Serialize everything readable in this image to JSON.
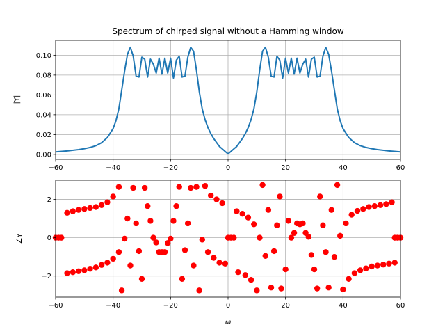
{
  "chart_data": [
    {
      "type": "line",
      "title": "Spectrum of chirped signal without a Hamming window",
      "xlabel": "",
      "ylabel": "|Y|",
      "xlim": [
        -60,
        60
      ],
      "ylim": [
        -0.005,
        0.115
      ],
      "xticks": [
        -60,
        -40,
        -20,
        0,
        20,
        40,
        60
      ],
      "xtick_labels": [
        "−60",
        "−40",
        "−20",
        "0",
        "20",
        "40",
        "60"
      ],
      "yticks": [
        0.0,
        0.02,
        0.04,
        0.06,
        0.08,
        0.1
      ],
      "ytick_labels": [
        "0.00",
        "0.02",
        "0.04",
        "0.06",
        "0.08",
        "0.10"
      ],
      "grid": true,
      "line_color": "#1f77b4",
      "x": [
        -60,
        -56,
        -52,
        -50,
        -48,
        -46,
        -44,
        -42,
        -40,
        -39,
        -38,
        -37,
        -36,
        -35,
        -34,
        -33,
        -32,
        -31,
        -30,
        -29,
        -28,
        -27,
        -26,
        -25,
        -24,
        -23,
        -22,
        -21,
        -20,
        -19,
        -18,
        -17,
        -16,
        -15,
        -14,
        -13,
        -12,
        -11,
        -10,
        -9,
        -8,
        -7,
        -6,
        -5,
        -4,
        -3,
        -2,
        -1,
        0,
        1,
        2,
        3,
        4,
        5,
        6,
        7,
        8,
        9,
        10,
        11,
        12,
        13,
        14,
        15,
        16,
        17,
        18,
        19,
        20,
        21,
        22,
        23,
        24,
        25,
        26,
        27,
        28,
        29,
        30,
        31,
        32,
        33,
        34,
        35,
        36,
        37,
        38,
        39,
        40,
        42,
        44,
        46,
        48,
        50,
        52,
        56,
        60
      ],
      "y": [
        0.0025,
        0.0035,
        0.0048,
        0.0058,
        0.007,
        0.0088,
        0.0118,
        0.017,
        0.026,
        0.034,
        0.046,
        0.065,
        0.084,
        0.101,
        0.108,
        0.099,
        0.079,
        0.078,
        0.098,
        0.096,
        0.078,
        0.096,
        0.091,
        0.082,
        0.097,
        0.081,
        0.097,
        0.082,
        0.097,
        0.077,
        0.095,
        0.099,
        0.078,
        0.079,
        0.098,
        0.108,
        0.104,
        0.085,
        0.063,
        0.046,
        0.035,
        0.027,
        0.021,
        0.016,
        0.012,
        0.008,
        0.0055,
        0.003,
        0.0005,
        0.003,
        0.0055,
        0.008,
        0.012,
        0.016,
        0.021,
        0.027,
        0.035,
        0.046,
        0.063,
        0.085,
        0.104,
        0.108,
        0.098,
        0.079,
        0.078,
        0.099,
        0.095,
        0.077,
        0.097,
        0.082,
        0.097,
        0.081,
        0.097,
        0.082,
        0.091,
        0.096,
        0.078,
        0.096,
        0.098,
        0.078,
        0.079,
        0.099,
        0.108,
        0.101,
        0.084,
        0.065,
        0.046,
        0.034,
        0.026,
        0.017,
        0.0118,
        0.0088,
        0.007,
        0.0058,
        0.0048,
        0.0035,
        0.0025
      ]
    },
    {
      "type": "scatter",
      "title": "",
      "xlabel": "ω",
      "ylabel": "∠Y",
      "xlim": [
        -60,
        60
      ],
      "ylim": [
        -3.1,
        3.0
      ],
      "xticks": [
        -60,
        -40,
        -20,
        0,
        20,
        40,
        60
      ],
      "xtick_labels": [
        "−60",
        "−40",
        "−20",
        "0",
        "20",
        "40",
        "60"
      ],
      "yticks": [
        -2,
        0,
        2
      ],
      "ytick_labels": [
        "−2",
        "0",
        "2"
      ],
      "grid": true,
      "marker_color": "#ff0000",
      "points": [
        [
          -60,
          0.0
        ],
        [
          -59,
          0.0
        ],
        [
          -58,
          0.0
        ],
        [
          -56,
          -1.85
        ],
        [
          -54,
          -1.8
        ],
        [
          -52,
          -1.75
        ],
        [
          -50,
          -1.7
        ],
        [
          -48,
          -1.62
        ],
        [
          -46,
          -1.55
        ],
        [
          -44,
          -1.42
        ],
        [
          -42,
          -1.3
        ],
        [
          -40,
          -1.1
        ],
        [
          -38,
          -0.75
        ],
        [
          -36,
          -0.05
        ],
        [
          -56,
          1.3
        ],
        [
          -54,
          1.38
        ],
        [
          -52,
          1.45
        ],
        [
          -50,
          1.5
        ],
        [
          -48,
          1.55
        ],
        [
          -46,
          1.6
        ],
        [
          -44,
          1.7
        ],
        [
          -42,
          1.85
        ],
        [
          -40,
          2.15
        ],
        [
          -38,
          2.65
        ],
        [
          -37,
          -2.75
        ],
        [
          -35,
          1.0
        ],
        [
          -34,
          -1.45
        ],
        [
          -33,
          2.6
        ],
        [
          -32,
          0.75
        ],
        [
          -31,
          -0.7
        ],
        [
          -30,
          -2.15
        ],
        [
          -29,
          2.6
        ],
        [
          -28,
          1.65
        ],
        [
          -27,
          0.88
        ],
        [
          -26,
          0.0
        ],
        [
          -25,
          -0.25
        ],
        [
          -24,
          -0.75
        ],
        [
          -23,
          -0.75
        ],
        [
          -22,
          -0.75
        ],
        [
          -21,
          -0.28
        ],
        [
          -20,
          -0.05
        ],
        [
          -19,
          0.88
        ],
        [
          -18,
          1.65
        ],
        [
          -17,
          2.65
        ],
        [
          -16,
          -2.15
        ],
        [
          -15,
          -0.65
        ],
        [
          -14,
          0.75
        ],
        [
          -13,
          2.6
        ],
        [
          -12,
          -1.45
        ],
        [
          -11,
          2.65
        ],
        [
          -10,
          -2.75
        ],
        [
          -9,
          -0.1
        ],
        [
          -8,
          2.7
        ],
        [
          -7,
          -0.75
        ],
        [
          -6,
          2.2
        ],
        [
          -5,
          -1.05
        ],
        [
          -4,
          2.0
        ],
        [
          -3,
          -1.3
        ],
        [
          -2,
          1.8
        ],
        [
          -1,
          -1.35
        ],
        [
          0,
          0.0
        ],
        [
          1,
          0.0
        ],
        [
          2,
          0.0
        ],
        [
          3,
          1.38
        ],
        [
          3.5,
          -1.8
        ],
        [
          5,
          1.25
        ],
        [
          6,
          -1.95
        ],
        [
          7,
          1.05
        ],
        [
          8,
          -2.2
        ],
        [
          9,
          0.7
        ],
        [
          10,
          -2.75
        ],
        [
          11,
          0.0
        ],
        [
          12,
          2.75
        ],
        [
          13,
          -0.95
        ],
        [
          14,
          1.45
        ],
        [
          15,
          -2.6
        ],
        [
          16,
          -0.7
        ],
        [
          17,
          0.65
        ],
        [
          18,
          2.15
        ],
        [
          18.5,
          -2.65
        ],
        [
          20,
          -1.65
        ],
        [
          21,
          0.88
        ],
        [
          22,
          0.0
        ],
        [
          23,
          0.25
        ],
        [
          24,
          0.75
        ],
        [
          25,
          0.7
        ],
        [
          26,
          0.75
        ],
        [
          27,
          0.25
        ],
        [
          28,
          0.05
        ],
        [
          29,
          -0.9
        ],
        [
          30,
          -1.65
        ],
        [
          31,
          -2.65
        ],
        [
          32,
          2.15
        ],
        [
          33,
          0.65
        ],
        [
          34,
          -0.75
        ],
        [
          35,
          -2.6
        ],
        [
          36,
          1.45
        ],
        [
          37,
          -1.0
        ],
        [
          38,
          2.75
        ],
        [
          39,
          0.1
        ],
        [
          40,
          -2.7
        ],
        [
          41,
          0.75
        ],
        [
          42,
          -2.15
        ],
        [
          43,
          1.2
        ],
        [
          44,
          -1.85
        ],
        [
          45,
          1.4
        ],
        [
          46,
          -1.7
        ],
        [
          47,
          1.5
        ],
        [
          48,
          -1.6
        ],
        [
          49,
          1.6
        ],
        [
          50,
          -1.5
        ],
        [
          51,
          1.65
        ],
        [
          52,
          -1.45
        ],
        [
          53,
          1.7
        ],
        [
          54,
          -1.4
        ],
        [
          55,
          1.75
        ],
        [
          56,
          -1.35
        ],
        [
          57,
          1.85
        ],
        [
          58,
          -1.3
        ],
        [
          58,
          0.0
        ],
        [
          59,
          0.0
        ],
        [
          60,
          0.0
        ]
      ]
    }
  ]
}
